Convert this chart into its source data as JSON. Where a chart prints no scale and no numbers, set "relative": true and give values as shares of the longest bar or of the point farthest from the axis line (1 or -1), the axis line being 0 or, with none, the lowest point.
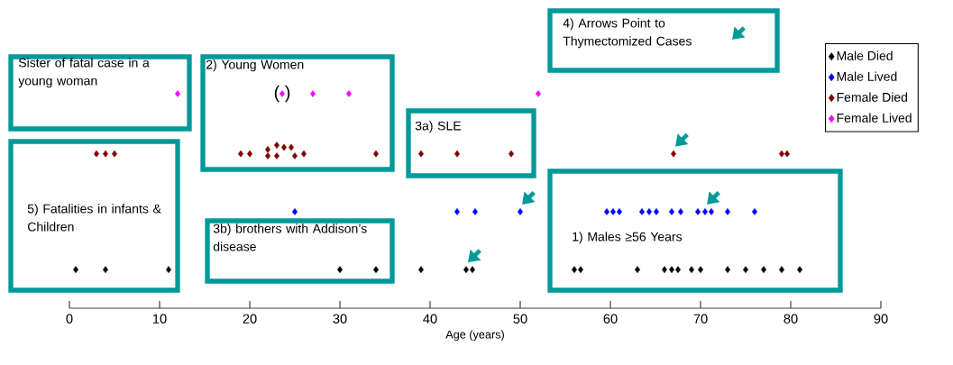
{
  "chart_data": {
    "type": "scatter",
    "relative": true,
    "xlabel": "Age (years)",
    "xlim": [
      0,
      90
    ],
    "xticks": [
      0,
      10,
      20,
      30,
      40,
      50,
      60,
      70,
      80,
      90
    ],
    "legend": "top right",
    "marker": "diamond",
    "series": [
      {
        "name": "Male Died",
        "color": "#000000",
        "x": [
          0.7,
          4,
          11,
          30,
          34,
          39,
          44,
          44.7,
          56,
          56.7,
          63,
          66,
          66.8,
          67.5,
          69,
          70,
          73,
          75,
          77,
          79,
          81
        ],
        "values": [
          0.18,
          0.18,
          0.18,
          0.18,
          0.18,
          0.18,
          0.18,
          0.18,
          0.18,
          0.18,
          0.18,
          0.18,
          0.18,
          0.18,
          0.18,
          0.18,
          0.18,
          0.18,
          0.18,
          0.18,
          0.18
        ]
      },
      {
        "name": "Male Lived",
        "color": "#0000ff",
        "x": [
          25,
          43,
          45,
          50,
          59.6,
          60.3,
          61,
          63.5,
          64.3,
          65.1,
          66.8,
          67.8,
          69.7,
          70.5,
          71.2,
          73,
          76
        ],
        "values": [
          0.45,
          0.45,
          0.45,
          0.45,
          0.45,
          0.45,
          0.45,
          0.45,
          0.45,
          0.45,
          0.45,
          0.45,
          0.45,
          0.45,
          0.45,
          0.45,
          0.45
        ]
      },
      {
        "name": "Female Died",
        "color": "#800000",
        "x": [
          3,
          4,
          5,
          19,
          20,
          22,
          22,
          23,
          23,
          23.8,
          24.6,
          25,
          26,
          34,
          39,
          43,
          49,
          67,
          79,
          79.6
        ],
        "values": [
          0.72,
          0.72,
          0.72,
          0.72,
          0.72,
          0.74,
          0.71,
          0.76,
          0.71,
          0.75,
          0.75,
          0.71,
          0.72,
          0.72,
          0.72,
          0.72,
          0.72,
          0.72,
          0.72,
          0.72
        ]
      },
      {
        "name": "Female Lived",
        "color": "#ff00ff",
        "x": [
          12,
          23.6,
          27,
          31,
          52
        ],
        "values": [
          1,
          1,
          1,
          1,
          1
        ]
      }
    ],
    "annotations": [
      "Sister of fatal case in a young woman",
      "2)  Young Women",
      "3a) SLE",
      "3b) brothers with Addison’s disease",
      "4) Arrows Point to Thymectomized Cases",
      "1) Males ≥56 Years",
      "5) Fatalities in infants & Children",
      {
        "text": "( )",
        "x": 23.6,
        "y": 1
      }
    ]
  }
}
